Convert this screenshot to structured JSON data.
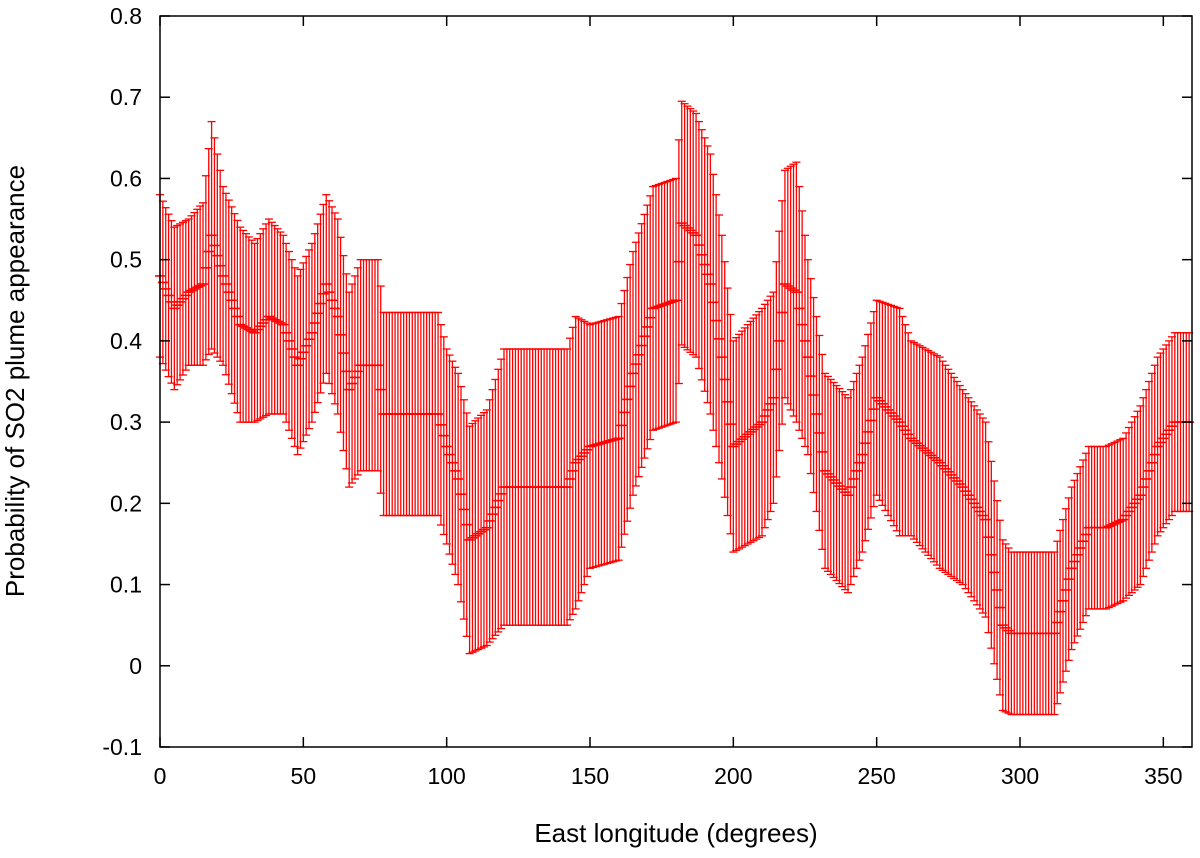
{
  "chart_data": {
    "type": "scatter",
    "title": "",
    "xlabel": "East longitude (degrees)",
    "ylabel": "Probability of SO2 plume appearance",
    "xlim": [
      0,
      360
    ],
    "ylim": [
      -0.1,
      0.8
    ],
    "xticks": [
      "0",
      "50",
      "100",
      "150",
      "200",
      "250",
      "300",
      "350"
    ],
    "yticks": [
      "-0.1",
      "0",
      "0.1",
      "0.2",
      "0.3",
      "0.4",
      "0.5",
      "0.6",
      "0.7",
      "0.8"
    ],
    "grid": false,
    "legend": "none",
    "color": "#ff0000",
    "series": [
      {
        "error_bars": "y",
        "x_step": 1,
        "x_start": 0,
        "knots": [
          [
            0,
            0.48,
            0.1
          ],
          [
            5,
            0.44,
            0.1
          ],
          [
            10,
            0.46,
            0.09
          ],
          [
            15,
            0.47,
            0.1
          ],
          [
            18,
            0.53,
            0.14
          ],
          [
            22,
            0.48,
            0.11
          ],
          [
            28,
            0.42,
            0.12
          ],
          [
            33,
            0.41,
            0.11
          ],
          [
            38,
            0.43,
            0.12
          ],
          [
            43,
            0.42,
            0.11
          ],
          [
            48,
            0.37,
            0.11
          ],
          [
            53,
            0.41,
            0.11
          ],
          [
            58,
            0.47,
            0.11
          ],
          [
            62,
            0.43,
            0.12
          ],
          [
            66,
            0.34,
            0.12
          ],
          [
            70,
            0.37,
            0.13
          ],
          [
            76,
            0.37,
            0.13
          ],
          [
            78,
            0.31,
            0.125
          ],
          [
            97,
            0.31,
            0.125
          ],
          [
            100,
            0.27,
            0.12
          ],
          [
            104,
            0.23,
            0.13
          ],
          [
            108,
            0.155,
            0.14
          ],
          [
            114,
            0.17,
            0.145
          ],
          [
            120,
            0.22,
            0.17
          ],
          [
            142,
            0.22,
            0.17
          ],
          [
            145,
            0.25,
            0.18
          ],
          [
            150,
            0.27,
            0.15
          ],
          [
            160,
            0.28,
            0.15
          ],
          [
            165,
            0.36,
            0.15
          ],
          [
            172,
            0.44,
            0.15
          ],
          [
            180,
            0.45,
            0.15
          ],
          [
            182,
            0.545,
            0.15
          ],
          [
            187,
            0.53,
            0.15
          ],
          [
            192,
            0.47,
            0.16
          ],
          [
            196,
            0.38,
            0.15
          ],
          [
            200,
            0.27,
            0.13
          ],
          [
            210,
            0.3,
            0.14
          ],
          [
            214,
            0.33,
            0.13
          ],
          [
            218,
            0.47,
            0.14
          ],
          [
            222,
            0.46,
            0.16
          ],
          [
            226,
            0.38,
            0.12
          ],
          [
            232,
            0.24,
            0.12
          ],
          [
            240,
            0.21,
            0.12
          ],
          [
            245,
            0.26,
            0.12
          ],
          [
            250,
            0.33,
            0.12
          ],
          [
            258,
            0.3,
            0.14
          ],
          [
            262,
            0.28,
            0.12
          ],
          [
            272,
            0.25,
            0.13
          ],
          [
            280,
            0.22,
            0.12
          ],
          [
            288,
            0.18,
            0.12
          ],
          [
            294,
            0.05,
            0.105
          ],
          [
            297,
            0.04,
            0.1
          ],
          [
            312,
            0.04,
            0.1
          ],
          [
            318,
            0.12,
            0.1
          ],
          [
            324,
            0.17,
            0.1
          ],
          [
            330,
            0.17,
            0.1
          ],
          [
            336,
            0.18,
            0.1
          ],
          [
            342,
            0.21,
            0.11
          ],
          [
            348,
            0.27,
            0.11
          ],
          [
            354,
            0.3,
            0.11
          ],
          [
            359,
            0.3,
            0.11
          ]
        ]
      }
    ]
  }
}
